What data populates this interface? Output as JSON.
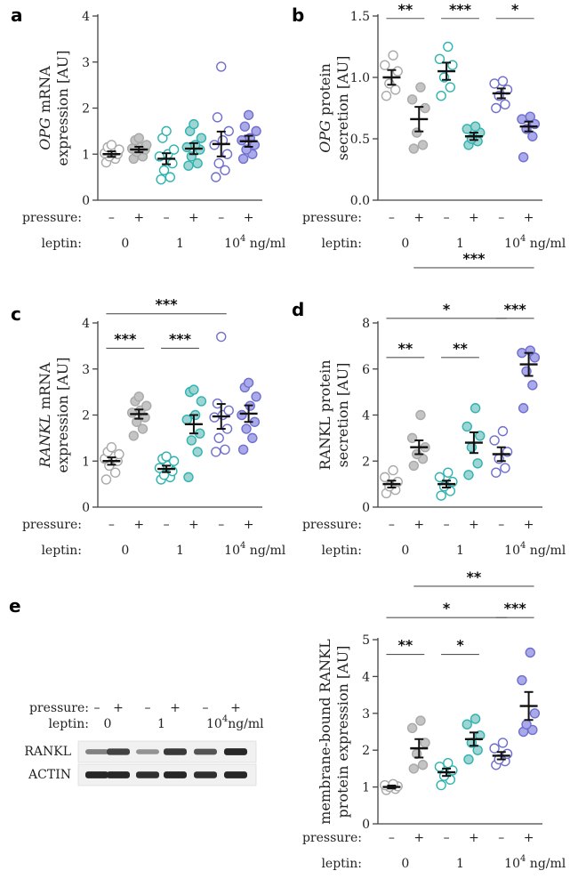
{
  "colors": {
    "control": "#a9a9a9",
    "control_fill": "#c4c4c4",
    "leptin1": "#2fb3b0",
    "leptin1_fill": "#9ed5d3",
    "leptin10k": "#6f6fcf",
    "leptin10k_fill": "#aaaaea"
  },
  "chart_data": [
    {
      "panel": "a",
      "type": "scatter",
      "ylabel_italic": "OPG",
      "ylabel_rest": " mRNA",
      "ylabel_line2": "expression [AU]",
      "ylim": [
        0,
        4
      ],
      "yticks": [
        "0",
        "1",
        "2",
        "3",
        "4"
      ],
      "pressure_label": "pressure:",
      "pressure_marks": [
        "–",
        "+",
        "–",
        "+",
        "–",
        "+"
      ],
      "leptin_label": "leptin:",
      "leptin_doses": [
        "0",
        "1",
        "10"
      ],
      "leptin_exp": "4",
      "leptin_unit": " ng/ml",
      "groups": [
        {
          "leptin": "0",
          "pressure": "–",
          "mean": 1.0,
          "sem": 0.06,
          "points": [
            0.82,
            0.9,
            0.95,
            1.0,
            1.02,
            1.05,
            1.1,
            1.15,
            1.2
          ]
        },
        {
          "leptin": "0",
          "pressure": "+",
          "mean": 1.1,
          "sem": 0.06,
          "points": [
            0.9,
            0.95,
            1.05,
            1.1,
            1.12,
            1.15,
            1.2,
            1.3,
            1.35
          ]
        },
        {
          "leptin": "1",
          "pressure": "–",
          "mean": 0.9,
          "sem": 0.12,
          "points": [
            0.45,
            0.5,
            0.65,
            0.8,
            0.95,
            1.0,
            1.1,
            1.35,
            1.5
          ]
        },
        {
          "leptin": "1",
          "pressure": "+",
          "mean": 1.12,
          "sem": 0.12,
          "points": [
            0.75,
            0.8,
            0.95,
            1.1,
            1.15,
            1.2,
            1.35,
            1.5,
            1.65
          ]
        },
        {
          "leptin": "10^4",
          "pressure": "–",
          "mean": 1.22,
          "sem": 0.27,
          "points": [
            0.5,
            0.65,
            0.8,
            1.0,
            1.2,
            1.3,
            1.5,
            1.8,
            2.9
          ]
        },
        {
          "leptin": "10^4",
          "pressure": "+",
          "mean": 1.28,
          "sem": 0.12,
          "points": [
            0.9,
            1.0,
            1.1,
            1.2,
            1.3,
            1.35,
            1.5,
            1.6,
            1.85
          ]
        }
      ],
      "significance": []
    },
    {
      "panel": "b",
      "type": "scatter",
      "ylabel_italic": "OPG",
      "ylabel_rest": " protein",
      "ylabel_line2": "secretion [AU]",
      "ylim": [
        0,
        1.5
      ],
      "yticks": [
        "0.0",
        "0.5",
        "1.0",
        "1.5"
      ],
      "pressure_label": "pressure:",
      "pressure_marks": [
        "–",
        "+",
        "–",
        "+",
        "–",
        "+"
      ],
      "leptin_label": "leptin:",
      "leptin_doses": [
        "0",
        "1",
        "10"
      ],
      "leptin_exp": "4",
      "leptin_unit": " ng/ml",
      "groups": [
        {
          "leptin": "0",
          "pressure": "–",
          "mean": 1.0,
          "sem": 0.06,
          "points": [
            0.85,
            0.9,
            0.95,
            1.05,
            1.1,
            1.18
          ]
        },
        {
          "leptin": "0",
          "pressure": "+",
          "mean": 0.66,
          "sem": 0.1,
          "points": [
            0.42,
            0.45,
            0.55,
            0.75,
            0.82,
            0.92
          ]
        },
        {
          "leptin": "1",
          "pressure": "–",
          "mean": 1.05,
          "sem": 0.07,
          "points": [
            0.85,
            0.92,
            1.0,
            1.1,
            1.15,
            1.25
          ]
        },
        {
          "leptin": "1",
          "pressure": "+",
          "mean": 0.52,
          "sem": 0.03,
          "points": [
            0.45,
            0.48,
            0.5,
            0.55,
            0.58,
            0.6
          ]
        },
        {
          "leptin": "10^4",
          "pressure": "–",
          "mean": 0.87,
          "sem": 0.04,
          "points": [
            0.75,
            0.78,
            0.85,
            0.9,
            0.95,
            0.97
          ]
        },
        {
          "leptin": "10^4",
          "pressure": "+",
          "mean": 0.6,
          "sem": 0.04,
          "points": [
            0.35,
            0.52,
            0.58,
            0.62,
            0.66,
            0.68
          ]
        }
      ],
      "significance": [
        {
          "from": 0,
          "to": 1,
          "y": 1.48,
          "stars": "**"
        },
        {
          "from": 2,
          "to": 3,
          "y": 1.48,
          "stars": "***"
        },
        {
          "from": 4,
          "to": 5,
          "y": 1.48,
          "stars": "*"
        }
      ]
    },
    {
      "panel": "c",
      "type": "scatter",
      "ylabel_italic": "RANKL",
      "ylabel_rest": " mRNA",
      "ylabel_line2": "expression [AU]",
      "ylim": [
        0,
        4
      ],
      "yticks": [
        "0",
        "1",
        "2",
        "3",
        "4"
      ],
      "pressure_label": "pressure:",
      "pressure_marks": [
        "–",
        "+",
        "–",
        "+",
        "–",
        "+"
      ],
      "leptin_label": "leptin:",
      "leptin_doses": [
        "0",
        "1",
        "10"
      ],
      "leptin_exp": "4",
      "leptin_unit": " ng/ml",
      "groups": [
        {
          "leptin": "0",
          "pressure": "–",
          "mean": 1.0,
          "sem": 0.08,
          "points": [
            0.6,
            0.75,
            0.9,
            1.0,
            1.05,
            1.1,
            1.15,
            1.2,
            1.3
          ]
        },
        {
          "leptin": "0",
          "pressure": "+",
          "mean": 2.02,
          "sem": 0.1,
          "points": [
            1.55,
            1.7,
            1.85,
            1.95,
            2.05,
            2.1,
            2.2,
            2.3,
            2.4
          ]
        },
        {
          "leptin": "1",
          "pressure": "–",
          "mean": 0.83,
          "sem": 0.07,
          "points": [
            0.6,
            0.65,
            0.7,
            0.78,
            0.85,
            0.9,
            1.0,
            1.05,
            1.1
          ]
        },
        {
          "leptin": "1",
          "pressure": "+",
          "mean": 1.8,
          "sem": 0.2,
          "points": [
            0.65,
            1.2,
            1.45,
            1.6,
            1.9,
            2.0,
            2.3,
            2.5,
            2.55
          ]
        },
        {
          "leptin": "10^4",
          "pressure": "–",
          "mean": 1.97,
          "sem": 0.27,
          "points": [
            1.2,
            1.25,
            1.5,
            1.7,
            1.95,
            2.0,
            2.1,
            2.25,
            3.7
          ]
        },
        {
          "leptin": "10^4",
          "pressure": "+",
          "mean": 2.03,
          "sem": 0.18,
          "points": [
            1.25,
            1.5,
            1.7,
            1.85,
            2.0,
            2.2,
            2.4,
            2.6,
            2.7
          ]
        }
      ],
      "significance": [
        {
          "from": 0,
          "to": 4,
          "y": 4.2,
          "stars": "***"
        },
        {
          "from": 0,
          "to": 1,
          "y": 3.45,
          "stars": "***"
        },
        {
          "from": 2,
          "to": 3,
          "y": 3.45,
          "stars": "***"
        }
      ]
    },
    {
      "panel": "d",
      "type": "scatter",
      "ylabel_italic": "",
      "ylabel_rest": "RANKL protein",
      "ylabel_line2": "secretion [AU]",
      "ylim": [
        0,
        8
      ],
      "yticks": [
        "0",
        "2",
        "4",
        "6",
        "8"
      ],
      "pressure_label": "pressure:",
      "pressure_marks": [
        "–",
        "+",
        "–",
        "+",
        "–",
        "+"
      ],
      "leptin_label": "leptin:",
      "leptin_doses": [
        "0",
        "1",
        "10"
      ],
      "leptin_exp": "4",
      "leptin_unit": " ng/ml",
      "groups": [
        {
          "leptin": "0",
          "pressure": "–",
          "mean": 1.0,
          "sem": 0.15,
          "points": [
            0.6,
            0.75,
            0.9,
            1.1,
            1.3,
            1.6
          ]
        },
        {
          "leptin": "0",
          "pressure": "+",
          "mean": 2.6,
          "sem": 0.3,
          "points": [
            1.8,
            2.1,
            2.3,
            2.6,
            3.0,
            4.0
          ]
        },
        {
          "leptin": "1",
          "pressure": "–",
          "mean": 1.0,
          "sem": 0.15,
          "points": [
            0.5,
            0.7,
            0.9,
            1.1,
            1.3,
            1.5
          ]
        },
        {
          "leptin": "1",
          "pressure": "+",
          "mean": 2.8,
          "sem": 0.45,
          "points": [
            1.4,
            1.9,
            2.6,
            3.1,
            3.5,
            4.3
          ]
        },
        {
          "leptin": "10^4",
          "pressure": "–",
          "mean": 2.3,
          "sem": 0.3,
          "points": [
            1.5,
            1.7,
            2.1,
            2.4,
            2.9,
            3.3
          ]
        },
        {
          "leptin": "10^4",
          "pressure": "+",
          "mean": 6.2,
          "sem": 0.5,
          "points": [
            4.3,
            5.3,
            5.9,
            6.5,
            6.7,
            6.8
          ]
        }
      ],
      "significance": [
        {
          "from": 1,
          "to": 5,
          "y": 10.4,
          "stars": "***"
        },
        {
          "from": 0,
          "to": 4,
          "y": 8.2,
          "stars": "*"
        },
        {
          "from": 4,
          "to": 5,
          "y": 8.2,
          "stars": "***"
        },
        {
          "from": 0,
          "to": 1,
          "y": 6.5,
          "stars": "**"
        },
        {
          "from": 2,
          "to": 3,
          "y": 6.5,
          "stars": "**"
        }
      ]
    },
    {
      "panel": "e",
      "type": "scatter",
      "ylabel_italic": "",
      "ylabel_rest": "membrane-bound RANKL",
      "ylabel_line2": "protein expression [AU]",
      "ylim": [
        0,
        5
      ],
      "yticks": [
        "0",
        "1",
        "2",
        "3",
        "4",
        "5"
      ],
      "pressure_label": "pressure:",
      "pressure_marks": [
        "–",
        "+",
        "–",
        "+",
        "–",
        "+"
      ],
      "leptin_label": "leptin:",
      "leptin_doses": [
        "0",
        "1",
        "10"
      ],
      "leptin_exp": "4",
      "leptin_unit": " ng/ml",
      "groups": [
        {
          "leptin": "0",
          "pressure": "–",
          "mean": 1.0,
          "sem": 0.04,
          "points": [
            0.92,
            0.95,
            1.0,
            1.02,
            1.05,
            1.08
          ]
        },
        {
          "leptin": "0",
          "pressure": "+",
          "mean": 2.05,
          "sem": 0.25,
          "points": [
            1.5,
            1.6,
            1.9,
            2.2,
            2.6,
            2.8
          ]
        },
        {
          "leptin": "1",
          "pressure": "–",
          "mean": 1.4,
          "sem": 0.1,
          "points": [
            1.05,
            1.2,
            1.3,
            1.45,
            1.55,
            1.65
          ]
        },
        {
          "leptin": "1",
          "pressure": "+",
          "mean": 2.3,
          "sem": 0.18,
          "points": [
            1.75,
            2.0,
            2.2,
            2.4,
            2.7,
            2.85
          ]
        },
        {
          "leptin": "10^4",
          "pressure": "–",
          "mean": 1.85,
          "sem": 0.1,
          "points": [
            1.6,
            1.7,
            1.75,
            1.9,
            2.05,
            2.2
          ]
        },
        {
          "leptin": "10^4",
          "pressure": "+",
          "mean": 3.2,
          "sem": 0.38,
          "points": [
            2.5,
            2.55,
            2.7,
            3.0,
            3.9,
            4.65
          ]
        }
      ],
      "significance": [
        {
          "from": 1,
          "to": 5,
          "y": 6.45,
          "stars": "**"
        },
        {
          "from": 0,
          "to": 4,
          "y": 5.6,
          "stars": "*"
        },
        {
          "from": 4,
          "to": 5,
          "y": 5.6,
          "stars": "***"
        },
        {
          "from": 0,
          "to": 1,
          "y": 4.6,
          "stars": "**"
        },
        {
          "from": 2,
          "to": 3,
          "y": 4.6,
          "stars": "*"
        }
      ]
    }
  ],
  "blot": {
    "panel": "e",
    "pressure_label": "pressure:",
    "pressure_marks": [
      "–",
      "+",
      "–",
      "+",
      "–",
      "+"
    ],
    "leptin_label": "leptin:",
    "leptin_doses": [
      "0",
      "1",
      "10"
    ],
    "leptin_exp": "4",
    "leptin_unit": "ng/ml",
    "rows": [
      "RANKL",
      "ACTIN"
    ],
    "band_intensity": [
      [
        0.45,
        0.8,
        0.35,
        0.85,
        0.7,
        0.95
      ],
      [
        0.95,
        0.95,
        0.9,
        0.95,
        0.9,
        0.95
      ]
    ]
  }
}
